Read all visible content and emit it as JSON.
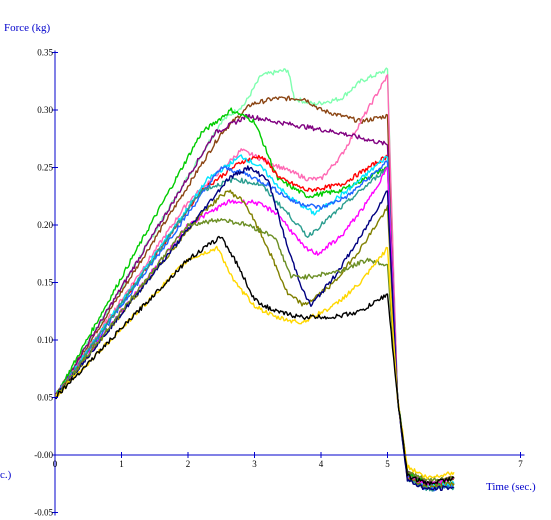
{
  "chart_data": {
    "type": "line",
    "title": "",
    "ylabel": "Force    (kg)",
    "xlabel": "Time (sec.)",
    "left_clipped_label": "c.)",
    "xlim": [
      0,
      7
    ],
    "ylim": [
      -0.05,
      0.35
    ],
    "x_ticks": [
      0,
      1,
      2,
      3,
      4,
      5,
      7
    ],
    "x_tick_labels": [
      "0",
      "1",
      "2",
      "3",
      "4",
      "5",
      "7"
    ],
    "y_ticks": [
      -0.05,
      0.0,
      0.05,
      0.1,
      0.15,
      0.2,
      0.25,
      0.3,
      0.35
    ],
    "y_tick_labels": [
      "-0.05",
      "-0.00",
      "0.05",
      "0.10",
      "0.15",
      "0.20",
      "0.25",
      "0.30",
      "0.35"
    ],
    "grid": false,
    "legend": "none",
    "axis_color": "#0000cc",
    "series": [
      {
        "color": "#7fffaf",
        "points": [
          [
            0,
            0.05
          ],
          [
            2.5,
            0.29
          ],
          [
            2.85,
            0.305
          ],
          [
            3.1,
            0.33
          ],
          [
            3.5,
            0.335
          ],
          [
            3.6,
            0.31
          ],
          [
            3.9,
            0.305
          ],
          [
            4.3,
            0.31
          ],
          [
            4.6,
            0.325
          ],
          [
            5.0,
            0.335
          ],
          [
            5.15,
            0.05
          ],
          [
            5.3,
            -0.015
          ],
          [
            5.6,
            -0.025
          ],
          [
            6.0,
            -0.02
          ]
        ]
      },
      {
        "color": "#8b4513",
        "points": [
          [
            0,
            0.05
          ],
          [
            2.5,
            0.28
          ],
          [
            2.95,
            0.305
          ],
          [
            3.3,
            0.31
          ],
          [
            3.75,
            0.31
          ],
          [
            4.0,
            0.3
          ],
          [
            4.6,
            0.29
          ],
          [
            5.0,
            0.295
          ],
          [
            5.15,
            0.05
          ],
          [
            5.3,
            -0.015
          ],
          [
            5.6,
            -0.025
          ],
          [
            6.0,
            -0.02
          ]
        ]
      },
      {
        "color": "#ff69b4",
        "points": [
          [
            0,
            0.05
          ],
          [
            2.0,
            0.22
          ],
          [
            2.8,
            0.265
          ],
          [
            3.2,
            0.255
          ],
          [
            3.8,
            0.24
          ],
          [
            4.0,
            0.24
          ],
          [
            4.3,
            0.26
          ],
          [
            4.7,
            0.3
          ],
          [
            5.0,
            0.33
          ],
          [
            5.15,
            0.05
          ],
          [
            5.3,
            -0.015
          ],
          [
            5.6,
            -0.025
          ],
          [
            6.0,
            -0.02
          ]
        ]
      },
      {
        "color": "#800080",
        "points": [
          [
            0,
            0.05
          ],
          [
            2.4,
            0.28
          ],
          [
            2.9,
            0.295
          ],
          [
            3.3,
            0.29
          ],
          [
            3.8,
            0.285
          ],
          [
            4.3,
            0.28
          ],
          [
            5.0,
            0.27
          ],
          [
            5.15,
            0.05
          ],
          [
            5.3,
            -0.015
          ],
          [
            5.6,
            -0.025
          ],
          [
            6.0,
            -0.025
          ]
        ]
      },
      {
        "color": "#00cc00",
        "points": [
          [
            0,
            0.05
          ],
          [
            2.2,
            0.28
          ],
          [
            2.65,
            0.3
          ],
          [
            3.0,
            0.29
          ],
          [
            3.35,
            0.24
          ],
          [
            3.8,
            0.225
          ],
          [
            4.3,
            0.23
          ],
          [
            5.0,
            0.25
          ],
          [
            5.15,
            0.05
          ],
          [
            5.3,
            -0.015
          ],
          [
            5.6,
            -0.025
          ],
          [
            6.0,
            -0.025
          ]
        ]
      },
      {
        "color": "#ff0000",
        "points": [
          [
            0,
            0.05
          ],
          [
            2.2,
            0.23
          ],
          [
            2.8,
            0.255
          ],
          [
            3.1,
            0.26
          ],
          [
            3.4,
            0.24
          ],
          [
            3.8,
            0.23
          ],
          [
            4.3,
            0.235
          ],
          [
            5.0,
            0.26
          ],
          [
            5.15,
            0.05
          ],
          [
            5.3,
            -0.02
          ],
          [
            5.6,
            -0.028
          ],
          [
            6.0,
            -0.025
          ]
        ]
      },
      {
        "color": "#00e5ff",
        "points": [
          [
            0,
            0.05
          ],
          [
            2.3,
            0.24
          ],
          [
            2.8,
            0.26
          ],
          [
            3.1,
            0.25
          ],
          [
            3.5,
            0.225
          ],
          [
            3.9,
            0.21
          ],
          [
            4.4,
            0.23
          ],
          [
            5.0,
            0.26
          ],
          [
            5.15,
            0.05
          ],
          [
            5.3,
            -0.02
          ],
          [
            5.6,
            -0.028
          ],
          [
            6.0,
            -0.025
          ]
        ]
      },
      {
        "color": "#1e64ff",
        "points": [
          [
            0,
            0.05
          ],
          [
            2.5,
            0.25
          ],
          [
            2.85,
            0.245
          ],
          [
            3.2,
            0.235
          ],
          [
            3.6,
            0.22
          ],
          [
            4.0,
            0.215
          ],
          [
            4.4,
            0.225
          ],
          [
            5.0,
            0.255
          ],
          [
            5.15,
            0.05
          ],
          [
            5.3,
            -0.02
          ],
          [
            5.6,
            -0.03
          ],
          [
            6.0,
            -0.028
          ]
        ]
      },
      {
        "color": "#2a9d8f",
        "points": [
          [
            0,
            0.05
          ],
          [
            2.2,
            0.23
          ],
          [
            2.7,
            0.24
          ],
          [
            3.1,
            0.235
          ],
          [
            3.5,
            0.21
          ],
          [
            3.8,
            0.19
          ],
          [
            4.2,
            0.21
          ],
          [
            4.6,
            0.23
          ],
          [
            5.0,
            0.25
          ],
          [
            5.15,
            0.05
          ],
          [
            5.3,
            -0.02
          ],
          [
            5.6,
            -0.03
          ],
          [
            6.0,
            -0.028
          ]
        ]
      },
      {
        "color": "#ff00ff",
        "points": [
          [
            0,
            0.05
          ],
          [
            2.0,
            0.2
          ],
          [
            2.6,
            0.22
          ],
          [
            3.0,
            0.22
          ],
          [
            3.35,
            0.21
          ],
          [
            3.75,
            0.18
          ],
          [
            3.95,
            0.175
          ],
          [
            4.3,
            0.19
          ],
          [
            4.7,
            0.22
          ],
          [
            5.0,
            0.25
          ],
          [
            5.15,
            0.05
          ],
          [
            5.3,
            -0.02
          ],
          [
            5.6,
            -0.025
          ],
          [
            6.0,
            -0.02
          ]
        ]
      },
      {
        "color": "#808000",
        "points": [
          [
            0,
            0.05
          ],
          [
            2.2,
            0.21
          ],
          [
            2.6,
            0.23
          ],
          [
            2.85,
            0.22
          ],
          [
            3.2,
            0.18
          ],
          [
            3.5,
            0.14
          ],
          [
            3.75,
            0.13
          ],
          [
            4.2,
            0.15
          ],
          [
            4.6,
            0.18
          ],
          [
            5.0,
            0.215
          ],
          [
            5.15,
            0.05
          ],
          [
            5.3,
            -0.02
          ],
          [
            5.6,
            -0.028
          ],
          [
            6.0,
            -0.025
          ]
        ]
      },
      {
        "color": "#000080",
        "points": [
          [
            0,
            0.05
          ],
          [
            2.6,
            0.24
          ],
          [
            2.9,
            0.25
          ],
          [
            3.2,
            0.24
          ],
          [
            3.5,
            0.18
          ],
          [
            3.75,
            0.14
          ],
          [
            3.85,
            0.13
          ],
          [
            4.2,
            0.155
          ],
          [
            4.6,
            0.19
          ],
          [
            5.0,
            0.23
          ],
          [
            5.15,
            0.05
          ],
          [
            5.3,
            -0.022
          ],
          [
            5.6,
            -0.03
          ],
          [
            6.0,
            -0.028
          ]
        ]
      },
      {
        "color": "#6b8e23",
        "points": [
          [
            0,
            0.05
          ],
          [
            2.0,
            0.2
          ],
          [
            2.5,
            0.205
          ],
          [
            2.9,
            0.2
          ],
          [
            3.3,
            0.19
          ],
          [
            3.55,
            0.155
          ],
          [
            3.8,
            0.155
          ],
          [
            4.3,
            0.16
          ],
          [
            4.7,
            0.17
          ],
          [
            5.0,
            0.165
          ],
          [
            5.15,
            0.05
          ],
          [
            5.3,
            -0.015
          ],
          [
            5.6,
            -0.022
          ],
          [
            6.0,
            -0.02
          ]
        ]
      },
      {
        "color": "#ffd700",
        "points": [
          [
            0,
            0.05
          ],
          [
            2.0,
            0.17
          ],
          [
            2.45,
            0.18
          ],
          [
            2.7,
            0.15
          ],
          [
            3.0,
            0.13
          ],
          [
            3.3,
            0.12
          ],
          [
            3.7,
            0.115
          ],
          [
            4.2,
            0.13
          ],
          [
            4.6,
            0.15
          ],
          [
            5.0,
            0.18
          ],
          [
            5.15,
            0.05
          ],
          [
            5.3,
            -0.01
          ],
          [
            5.6,
            -0.02
          ],
          [
            6.0,
            -0.015
          ]
        ]
      },
      {
        "color": "#000000",
        "points": [
          [
            0,
            0.05
          ],
          [
            2.0,
            0.17
          ],
          [
            2.5,
            0.19
          ],
          [
            2.75,
            0.165
          ],
          [
            3.0,
            0.135
          ],
          [
            3.3,
            0.125
          ],
          [
            3.7,
            0.12
          ],
          [
            4.2,
            0.12
          ],
          [
            4.6,
            0.125
          ],
          [
            5.0,
            0.14
          ],
          [
            5.15,
            0.05
          ],
          [
            5.3,
            -0.018
          ],
          [
            5.6,
            -0.025
          ],
          [
            6.0,
            -0.02
          ]
        ]
      }
    ]
  }
}
